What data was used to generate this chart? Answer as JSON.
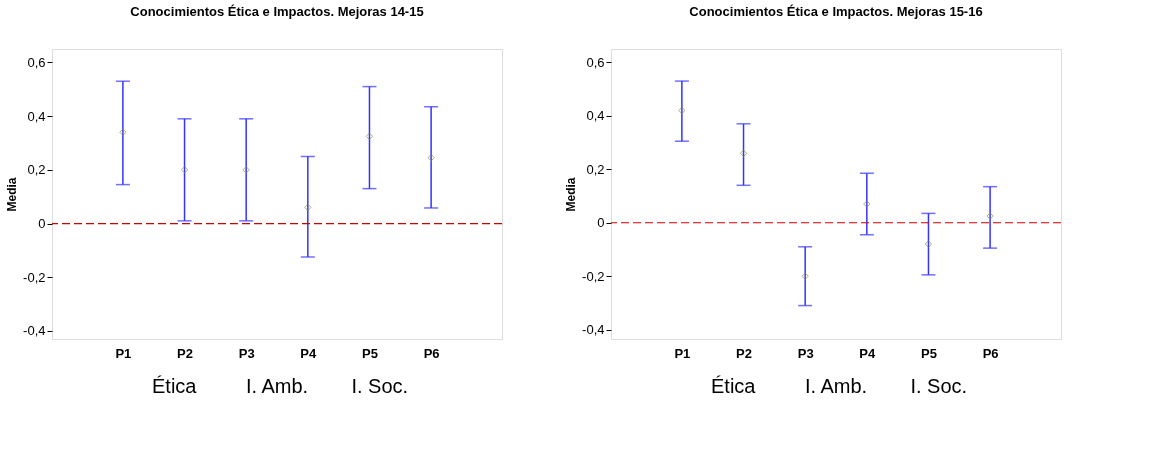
{
  "chart_data": [
    {
      "type": "scatter",
      "title": "Conocimientos Ética e Impactos. Mejoras 14-15",
      "ylabel": "Media",
      "categories": [
        "P1",
        "P2",
        "P3",
        "P4",
        "P5",
        "P6"
      ],
      "series": [
        {
          "color": "#8c8c3c",
          "values": [
            0.34,
            0.2,
            0.2,
            0.06,
            0.325,
            0.245
          ],
          "errors": [
            [
              0.145,
              0.53
            ],
            [
              0.01,
              0.39
            ],
            [
              0.01,
              0.39
            ],
            [
              -0.125,
              0.25
            ],
            [
              0.13,
              0.51
            ],
            [
              0.058,
              0.435
            ]
          ]
        }
      ],
      "marker": "diamond",
      "ylim": [
        -0.43,
        0.65
      ],
      "yticks": [
        {
          "value": -0.4,
          "label": "-0,4"
        },
        {
          "value": -0.2,
          "label": "-0,2"
        },
        0,
        {
          "value": 0.2,
          "label": "0,2"
        },
        {
          "value": 0.4,
          "label": "0,4"
        },
        {
          "value": 0.6,
          "label": "0,6"
        }
      ],
      "ref_lines": [
        {
          "axis": "y",
          "value": 0,
          "color": "#cc0000",
          "line_style": "dashed"
        }
      ],
      "annotations": [
        "Ética",
        "I. Amb.",
        "I. Soc."
      ],
      "grid": false
    },
    {
      "type": "scatter",
      "title": "Conocimientos Ética e Impactos. Mejoras 15-16",
      "ylabel": "Media",
      "categories": [
        "P1",
        "P2",
        "P3",
        "P4",
        "P5",
        "P6"
      ],
      "series": [
        {
          "color": "#8c8c3c",
          "values": [
            0.42,
            0.26,
            -0.2,
            0.07,
            -0.08,
            0.025
          ],
          "errors": [
            [
              0.305,
              0.53
            ],
            [
              0.14,
              0.37
            ],
            [
              -0.31,
              -0.09
            ],
            [
              -0.045,
              0.185
            ],
            [
              -0.195,
              0.035
            ],
            [
              -0.095,
              0.135
            ]
          ]
        }
      ],
      "marker": "diamond",
      "ylim": [
        -0.435,
        0.65
      ],
      "yticks": [
        {
          "value": -0.4,
          "label": "-0,4"
        },
        {
          "value": -0.2,
          "label": "-0,2"
        },
        0,
        {
          "value": 0.2,
          "label": "0,2"
        },
        {
          "value": 0.4,
          "label": "0,4"
        },
        {
          "value": 0.6,
          "label": "0,6"
        }
      ],
      "ref_lines": [
        {
          "axis": "y",
          "value": 0,
          "color": "#cc0000",
          "line_style": "dashed"
        }
      ],
      "annotations": [
        "Ética",
        "I. Amb.",
        "I. Soc."
      ],
      "grid": false
    }
  ]
}
